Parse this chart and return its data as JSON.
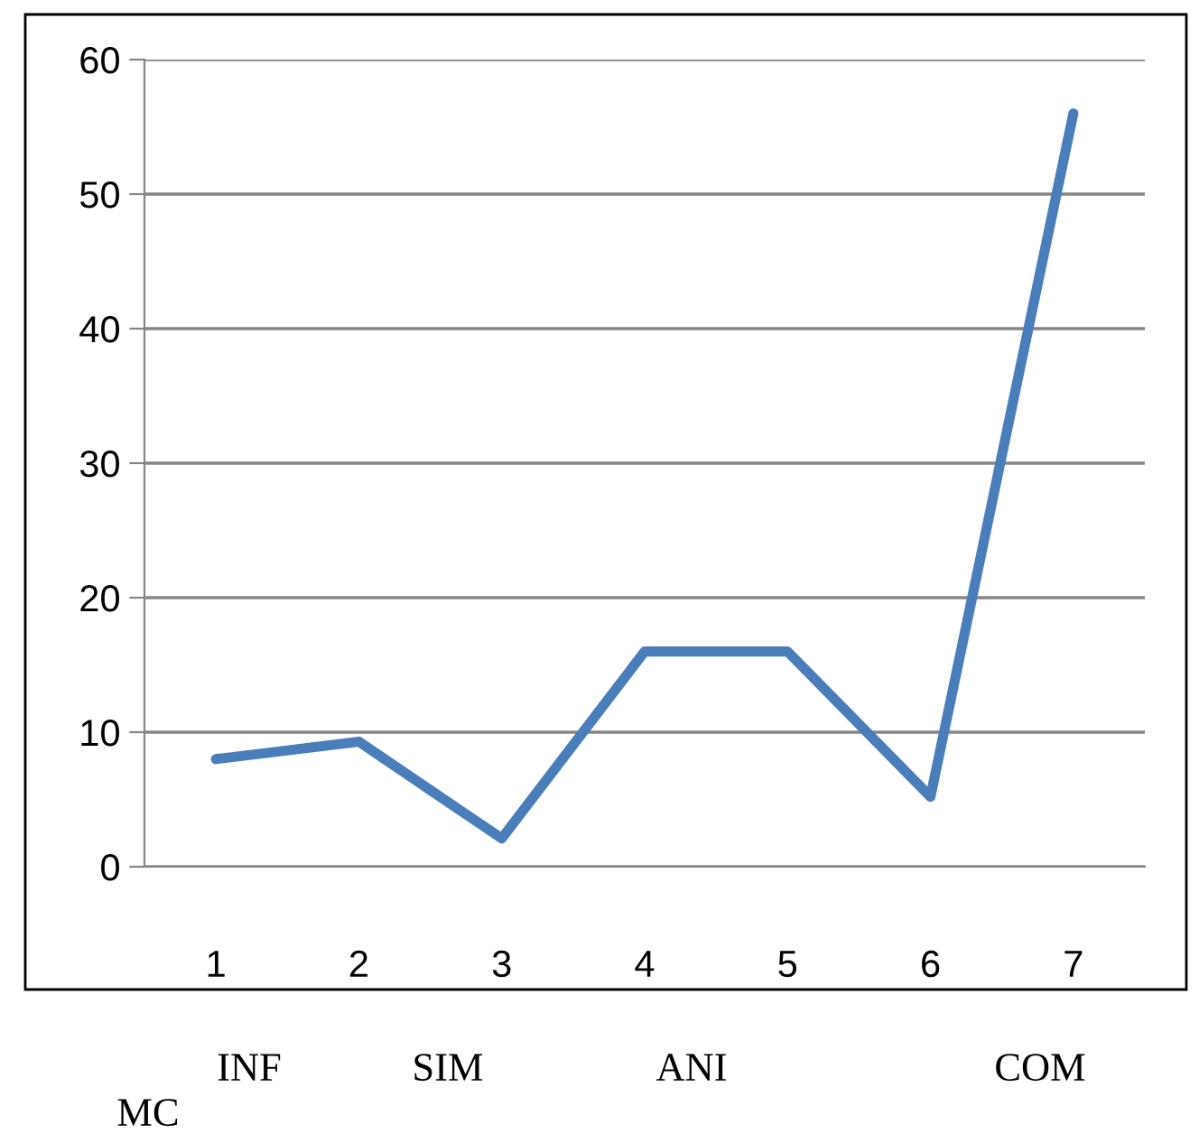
{
  "chart_data": {
    "type": "line",
    "categories": [
      "1",
      "2",
      "3",
      "4",
      "5",
      "6",
      "7"
    ],
    "series": [
      {
        "color": "#4a7ebb",
        "values": [
          8,
          9.3,
          2.1,
          16,
          16,
          5.2,
          56
        ]
      }
    ],
    "ylim": [
      0,
      60
    ],
    "yticks": [
      0,
      10,
      20,
      30,
      40,
      50,
      60
    ],
    "grid": "y",
    "legend": false,
    "marker": "none",
    "line_style": "solid",
    "annotations": [
      "INF",
      "SIM",
      "ANI",
      "COM",
      "MC"
    ]
  }
}
